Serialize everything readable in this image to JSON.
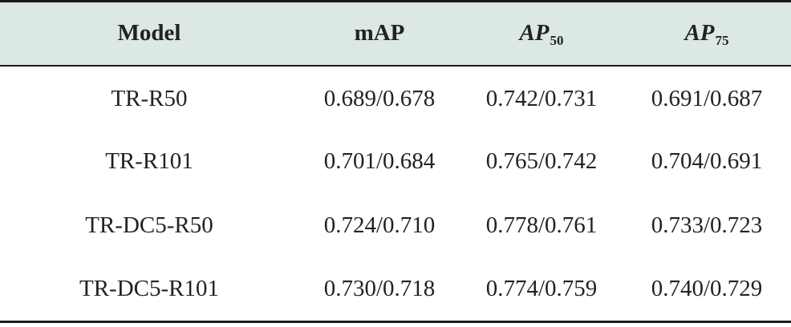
{
  "table": {
    "headers": {
      "model": "Model",
      "map": "mAP",
      "ap50_main": "AP",
      "ap50_sub": "50",
      "ap75_main": "AP",
      "ap75_sub": "75"
    },
    "rows": [
      {
        "model": "TR-R50",
        "map": "0.689/0.678",
        "ap50": "0.742/0.731",
        "ap75": "0.691/0.687"
      },
      {
        "model": "TR-R101",
        "map": "0.701/0.684",
        "ap50": "0.765/0.742",
        "ap75": "0.704/0.691"
      },
      {
        "model": "TR-DC5-R50",
        "map": "0.724/0.710",
        "ap50": "0.778/0.761",
        "ap75": "0.733/0.723"
      },
      {
        "model": "TR-DC5-R101",
        "map": "0.730/0.718",
        "ap50": "0.774/0.759",
        "ap75": "0.740/0.729"
      }
    ]
  },
  "colors": {
    "header_background": "#dbe8e3",
    "rule": "#1a1a1a",
    "text": "#222222"
  }
}
